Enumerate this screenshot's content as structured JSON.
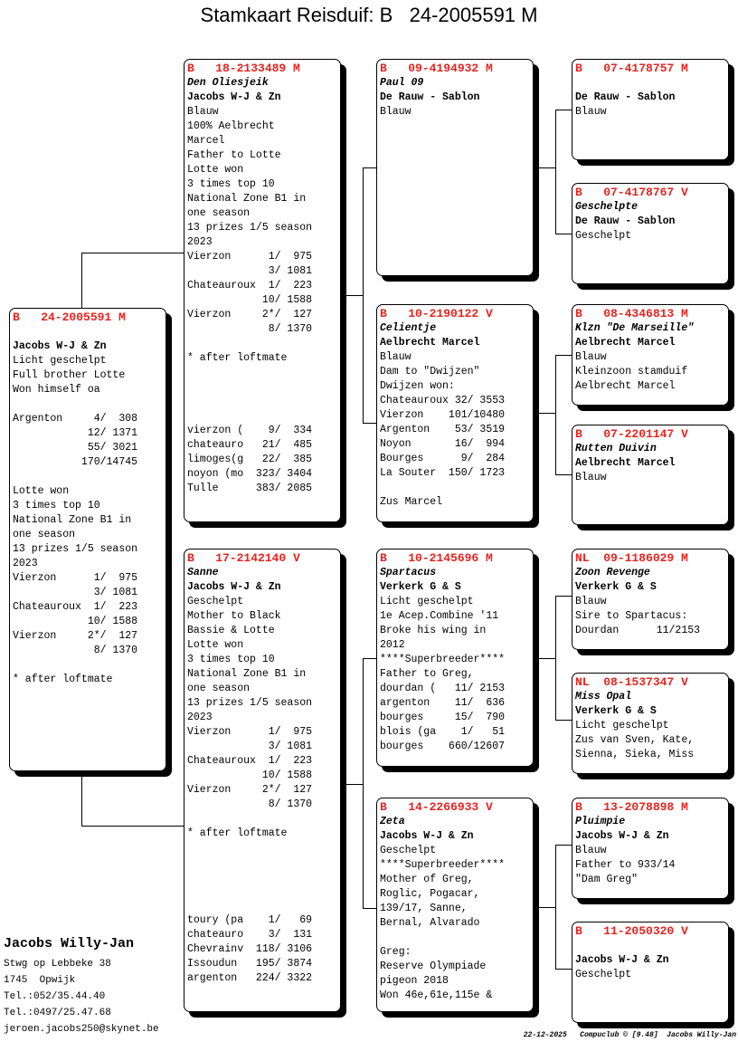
{
  "title": "Stamkaart Reisduif: B   24-2005591 M",
  "pigeons": {
    "subject": {
      "ring": "B   24-2005591 M",
      "name": "",
      "owner": "Jacobs W-J & Zn",
      "lines": [
        "Licht geschelpt",
        "Full brother Lotte",
        "Won himself oa",
        "",
        "Argenton     4/  308",
        "            12/ 1371",
        "            55/ 3021",
        "           170/14745",
        "",
        "Lotte won",
        "3 times top 10",
        "National Zone B1 in",
        "one season",
        "13 prizes 1/5 season",
        "2023",
        "Vierzon      1/  975",
        "             3/ 1081",
        "Chateauroux  1/  223",
        "            10/ 1588",
        "Vierzon     2*/  127",
        "             8/ 1370",
        "",
        "* after loftmate"
      ]
    },
    "sire": {
      "ring": "B   18-2133489 M",
      "name": "Den Oliesjeik",
      "owner": "Jacobs W-J & Zn",
      "lines": [
        "Blauw",
        "100% Aelbrecht",
        "Marcel",
        "Father to Lotte",
        "Lotte won",
        "3 times top 10",
        "National Zone B1 in",
        "one season",
        "13 prizes 1/5 season",
        "2023",
        "Vierzon      1/  975",
        "             3/ 1081",
        "Chateauroux  1/  223",
        "            10/ 1588",
        "Vierzon     2*/  127",
        "             8/ 1370",
        "",
        "* after loftmate",
        "",
        "",
        "",
        "",
        "vierzon (    9/  334",
        "chateauro   21/  485",
        "limoges(g   22/  385",
        "noyon (mo  323/ 3404",
        "Tulle      383/ 2085"
      ]
    },
    "dam": {
      "ring": "B   17-2142140 V",
      "name": "Sanne",
      "owner": "Jacobs W-J & Zn",
      "lines": [
        "Geschelpt",
        "Mother to Black",
        "Bassie & Lotte",
        "Lotte won",
        "3 times top 10",
        "National Zone B1 in",
        "one season",
        "13 prizes 1/5 season",
        "2023",
        "Vierzon      1/  975",
        "             3/ 1081",
        "Chateauroux  1/  223",
        "            10/ 1588",
        "Vierzon     2*/  127",
        "             8/ 1370",
        "",
        "* after loftmate",
        "",
        "",
        "",
        "",
        "",
        "toury (pa    1/   69",
        "chateauro    3/  131",
        "Chevrainv  118/ 3106",
        "Issoudun   195/ 3874",
        "argenton   224/ 3322"
      ]
    },
    "ss": {
      "ring": "B   09-4194932 M",
      "name": "Paul 09",
      "owner": "De Rauw - Sablon",
      "lines": [
        "Blauw"
      ]
    },
    "sd": {
      "ring": "B   10-2190122 V",
      "name": "Celientje",
      "owner": "Aelbrecht Marcel",
      "lines": [
        "Blauw",
        "Dam to \"Dwijzen\"",
        "Dwijzen won:",
        "Chateauroux 32/ 3553",
        "Vierzon    101/10480",
        "Argenton    53/ 3519",
        "Noyon       16/  994",
        "Bourges      9/  284",
        "La Souter  150/ 1723",
        "",
        "Zus Marcel"
      ]
    },
    "ds": {
      "ring": "B   10-2145696 M",
      "name": "Spartacus",
      "owner": "Verkerk G & S",
      "lines": [
        "Licht geschelpt",
        "1e Acep.Combine '11",
        "Broke his wing in",
        "2012",
        "****Superbreeder****",
        "Father to Greg,",
        "dourdan (   11/ 2153",
        "argenton    11/  636",
        "bourges     15/  790",
        "blois (ga    1/   51",
        "bourges    660/12607"
      ]
    },
    "dd": {
      "ring": "B   14-2266933 V",
      "name": "Zeta",
      "owner": "Jacobs W-J & Zn",
      "lines": [
        "Geschelpt",
        "****Superbreeder****",
        "Mother of Greg,",
        "Roglic, Pogacar,",
        "139/17, Sanne,",
        "Bernal, Alvarado",
        "",
        "Greg:",
        "Reserve Olympiade",
        "pigeon 2018",
        "Won 46e,61e,115e &"
      ]
    },
    "sss": {
      "ring": "B   07-4178757 M",
      "name": "",
      "owner": "De Rauw - Sablon",
      "lines": [
        "Blauw"
      ]
    },
    "ssd": {
      "ring": "B   07-4178767 V",
      "name": "Geschelpte",
      "owner": "De Rauw - Sablon",
      "lines": [
        "Geschelpt"
      ]
    },
    "sds": {
      "ring": "B   08-4346813 M",
      "name": "Klzn \"De Marseille\"",
      "owner": "Aelbrecht Marcel",
      "lines": [
        "Blauw",
        "Kleinzoon stamduif",
        "Aelbrecht Marcel"
      ]
    },
    "sdd": {
      "ring": "B   07-2201147 V",
      "name": "Rutten Duivin",
      "owner": "Aelbrecht Marcel",
      "lines": [
        "Blauw"
      ]
    },
    "dss": {
      "ring": "NL  09-1186029 M",
      "name": "Zoon Revenge",
      "owner": "Verkerk G & S",
      "lines": [
        "Blauw",
        "Sire to Spartacus:",
        "Dourdan      11/2153"
      ]
    },
    "dsd": {
      "ring": "NL  08-1537347 V",
      "name": "Miss Opal",
      "owner": "Verkerk G & S",
      "lines": [
        "Licht geschelpt",
        "Zus van Sven, Kate,",
        "Sienna, Sieka, Miss"
      ]
    },
    "dds": {
      "ring": "B   13-2078898 M",
      "name": "Pluimpie",
      "owner": "Jacobs W-J & Zn",
      "lines": [
        "Blauw",
        "Father to 933/14",
        "\"Dam Greg\""
      ]
    },
    "ddd": {
      "ring": "B   11-2050320 V",
      "name": "",
      "owner": "Jacobs W-J & Zn",
      "lines": [
        "Geschelpt"
      ]
    }
  },
  "breeder": {
    "name": "Jacobs Willy-Jan",
    "address": "Stwg op Lebbeke 38",
    "city": "1745  Opwijk",
    "tel1": "Tel.:052/35.44.40",
    "tel2": "Tel.:0497/25.47.68",
    "email": "jeroen.jacobs250@skynet.be"
  },
  "footer": {
    "date": "22-12-2025",
    "software": "Compuclub © [9.48]",
    "owner": "Jacobs Willy-Jan"
  },
  "colors": {
    "ring": "#e8231f"
  }
}
